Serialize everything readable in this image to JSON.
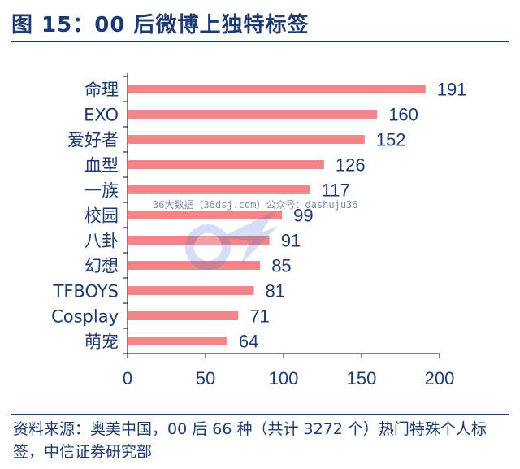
{
  "figure_title": "图 15：00 后微博上独特标签",
  "watermark": "36大数据（36dsj.com）公众号：dashuju36",
  "watermark_logo_text": "36大数据",
  "source_note": "资料来源：奥美中国，00 后 66 种（共计 3272 个）热门特殊个人标签，中信证券研究部",
  "colors": {
    "bar": "#f28587",
    "text": "#1f3a6e",
    "axis": "#000000"
  },
  "chart_data": {
    "type": "bar",
    "orientation": "horizontal",
    "categories": [
      "命理",
      "EXO",
      "爱好者",
      "血型",
      "一族",
      "校园",
      "八卦",
      "幻想",
      "TFBOYS",
      "Cosplay",
      "萌宠"
    ],
    "values": [
      191,
      160,
      152,
      126,
      117,
      99,
      91,
      85,
      81,
      71,
      64
    ],
    "xlim": [
      0,
      200
    ],
    "xticks": [
      0,
      50,
      100,
      150,
      200
    ],
    "data_labels": true,
    "grid": false,
    "legend": "none",
    "title": "",
    "xlabel": "",
    "ylabel": ""
  }
}
